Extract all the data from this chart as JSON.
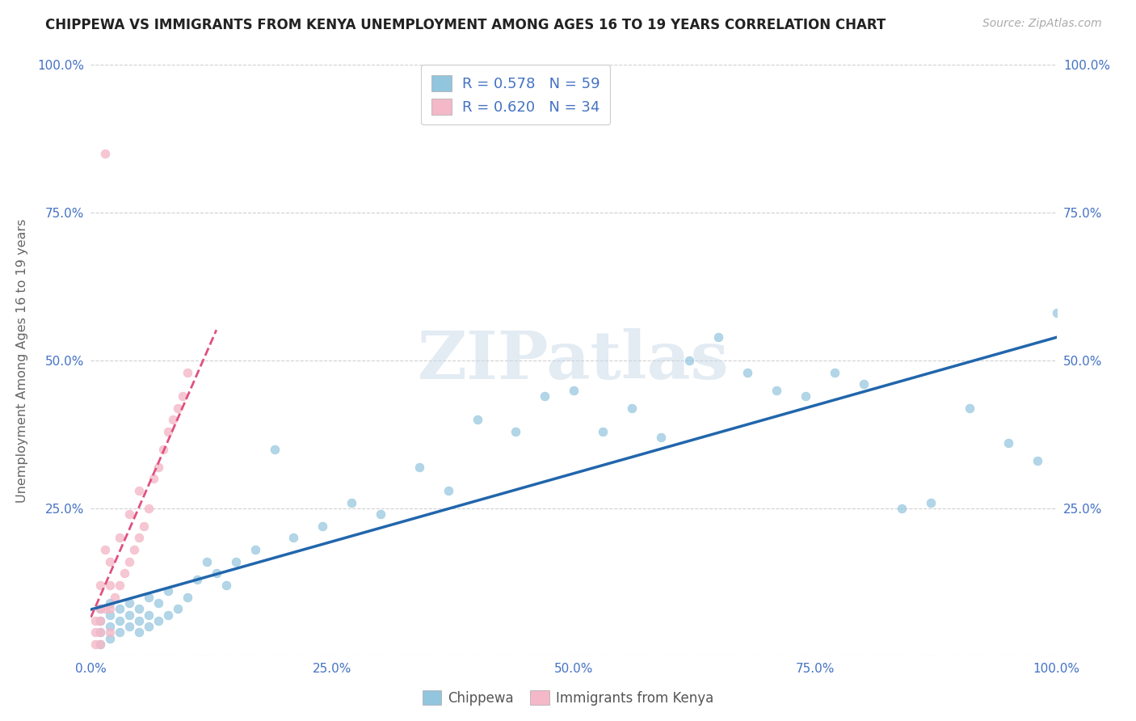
{
  "title": "CHIPPEWA VS IMMIGRANTS FROM KENYA UNEMPLOYMENT AMONG AGES 16 TO 19 YEARS CORRELATION CHART",
  "source_text": "Source: ZipAtlas.com",
  "ylabel": "Unemployment Among Ages 16 to 19 years",
  "xlim": [
    0,
    100
  ],
  "ylim": [
    0,
    100
  ],
  "xtick_labels": [
    "0.0%",
    "25.0%",
    "50.0%",
    "75.0%",
    "100.0%"
  ],
  "ytick_labels": [
    "",
    "25.0%",
    "50.0%",
    "75.0%",
    "100.0%"
  ],
  "watermark": "ZIPatlas",
  "legend_blue_r": "R = 0.578",
  "legend_blue_n": "N = 59",
  "legend_pink_r": "R = 0.620",
  "legend_pink_n": "N = 34",
  "legend_label_blue": "Chippewa",
  "legend_label_pink": "Immigrants from Kenya",
  "blue_color": "#92c5de",
  "pink_color": "#f4b8c8",
  "blue_line_color": "#2166ac",
  "pink_line_color": "#e05080",
  "title_color": "#222222",
  "tick_color": "#4472c4",
  "grid_color": "#d0d0d0",
  "background_color": "#ffffff",
  "blue_r": 0.578,
  "pink_r": 0.62,
  "blue_n": 59,
  "pink_n": 34,
  "chippewa_x": [
    1,
    1,
    1,
    1,
    2,
    2,
    2,
    2,
    3,
    3,
    3,
    4,
    4,
    4,
    5,
    5,
    5,
    6,
    6,
    6,
    7,
    7,
    8,
    8,
    9,
    10,
    11,
    12,
    13,
    14,
    15,
    17,
    19,
    21,
    24,
    27,
    30,
    34,
    37,
    40,
    44,
    47,
    50,
    53,
    56,
    59,
    62,
    65,
    68,
    71,
    74,
    77,
    80,
    84,
    87,
    91,
    95,
    98,
    100
  ],
  "chippewa_y": [
    2,
    4,
    6,
    8,
    3,
    5,
    7,
    9,
    4,
    6,
    8,
    5,
    7,
    9,
    4,
    6,
    8,
    5,
    7,
    10,
    6,
    9,
    7,
    11,
    8,
    10,
    13,
    16,
    14,
    12,
    16,
    18,
    35,
    20,
    22,
    26,
    24,
    32,
    28,
    40,
    38,
    44,
    45,
    38,
    42,
    37,
    50,
    54,
    48,
    45,
    44,
    48,
    46,
    25,
    26,
    42,
    36,
    33,
    58
  ],
  "kenya_x": [
    0.5,
    0.5,
    0.5,
    1,
    1,
    1,
    1,
    1,
    1.5,
    1.5,
    2,
    2,
    2,
    2,
    2.5,
    3,
    3,
    3.5,
    4,
    4,
    4.5,
    5,
    5,
    5.5,
    6,
    6.5,
    7,
    7.5,
    8,
    8.5,
    9,
    9.5,
    10,
    1.5
  ],
  "kenya_y": [
    2,
    4,
    6,
    2,
    4,
    6,
    8,
    12,
    8,
    18,
    4,
    8,
    12,
    16,
    10,
    12,
    20,
    14,
    16,
    24,
    18,
    20,
    28,
    22,
    25,
    30,
    32,
    35,
    38,
    40,
    42,
    44,
    48,
    85
  ]
}
